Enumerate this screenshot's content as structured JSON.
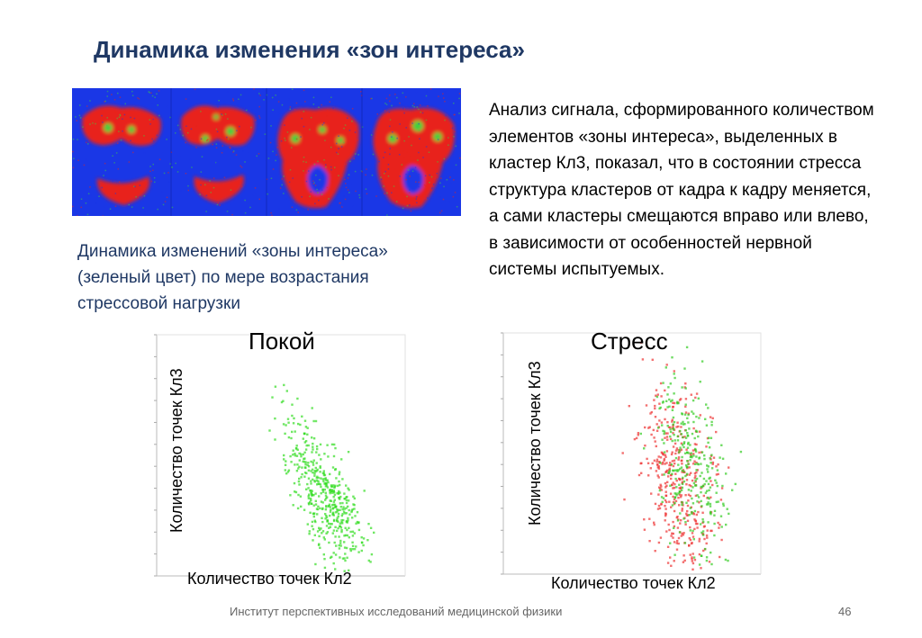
{
  "slide": {
    "title": "Динамика изменения «зон интереса»",
    "caption": "Динамика изменений «зоны интереса» (зеленый цвет) по мере возрастания стрессовой нагрузки",
    "analysis": "Анализ сигнала, сформированного количеством элементов «зоны интереса», выделенных в кластер Кл3, показал, что в состоянии стресса структура кластеров от кадра к кадру меняется, а сами кластеры смещаются вправо или влево, в зависимости от особенностей нервной системы испытуемых.",
    "footer": "Институт перспективных исследований медицинской физики",
    "page_number": "46"
  },
  "colors": {
    "title": "#1f3864",
    "thermo_background": "#1a37e6",
    "cluster_red": "#e8231a",
    "interest_green": "#3cd23c"
  },
  "chart_data": [
    {
      "type": "scatter",
      "title": "Покой",
      "xlabel": "Количество точек Кл2",
      "ylabel": "Количество точек Кл3",
      "series": [
        {
          "color": "#33dd22",
          "clusters": [
            {
              "cx": 0.62,
              "cy": 0.6,
              "sx": 0.045,
              "sy": 0.16,
              "tilt": 0.25,
              "n": 260
            },
            {
              "cx": 0.73,
              "cy": 0.72,
              "sx": 0.04,
              "sy": 0.12,
              "tilt": 0.25,
              "n": 220
            }
          ]
        }
      ]
    },
    {
      "type": "scatter",
      "title": "Стресс",
      "xlabel": "Количество точек Кл2",
      "ylabel": "Количество точек Кл3",
      "series": [
        {
          "color": "#ee3333",
          "clusters": [
            {
              "cx": 0.68,
              "cy": 0.62,
              "sx": 0.07,
              "sy": 0.2,
              "tilt": 0.12,
              "n": 420
            }
          ]
        },
        {
          "color": "#33cc22",
          "clusters": [
            {
              "cx": 0.73,
              "cy": 0.58,
              "sx": 0.06,
              "sy": 0.2,
              "tilt": 0.12,
              "n": 300
            }
          ]
        }
      ]
    }
  ]
}
